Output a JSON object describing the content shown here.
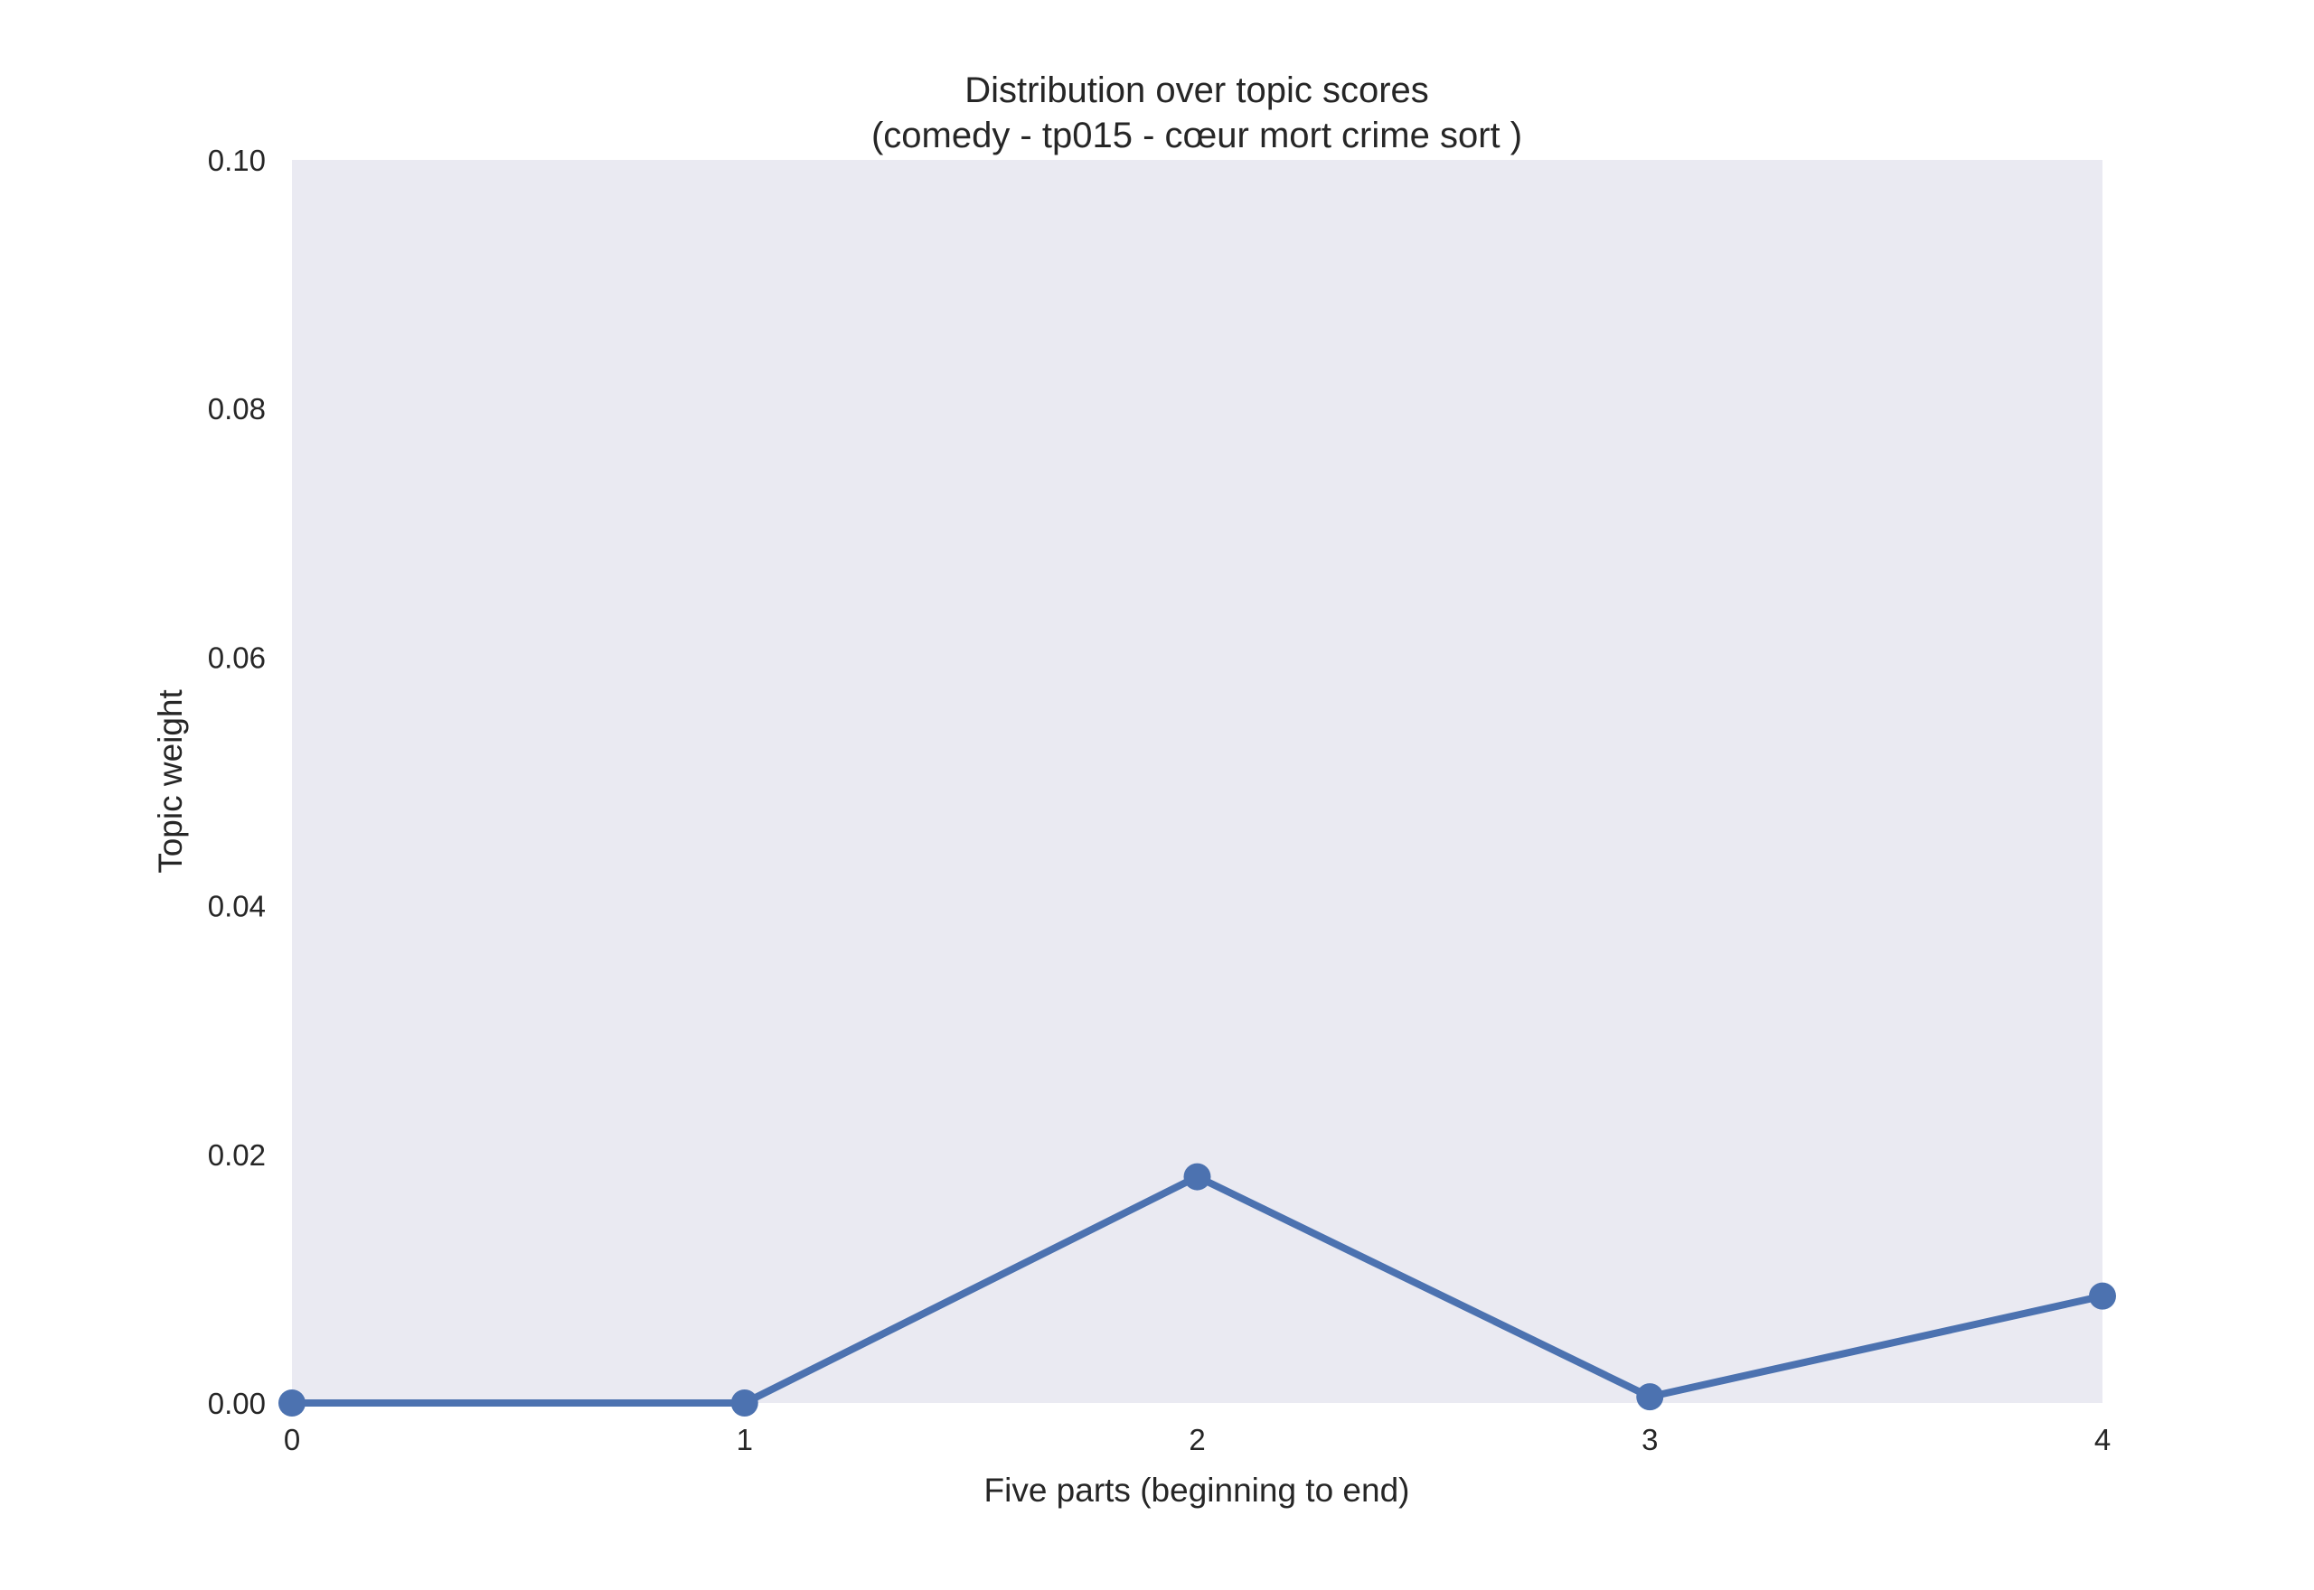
{
  "chart_data": {
    "type": "line",
    "title_line1": "Distribution over topic scores",
    "title_line2": "(comedy - tp015 - cœur mort crime sort )",
    "xlabel": "Five parts (beginning to end)",
    "ylabel": "Topic weight",
    "x": [
      0,
      1,
      2,
      3,
      4
    ],
    "x_tick_labels": [
      "0",
      "1",
      "2",
      "3",
      "4"
    ],
    "y_tick_labels": [
      "0.00",
      "0.02",
      "0.04",
      "0.06",
      "0.08",
      "0.10"
    ],
    "y_ticks": [
      0.0,
      0.02,
      0.04,
      0.06,
      0.08,
      0.1
    ],
    "xlim": [
      0,
      4
    ],
    "ylim": [
      0,
      0.1
    ],
    "grid": false,
    "series": [
      {
        "values": [
          0.0,
          0.0,
          0.0182,
          0.0005,
          0.0086
        ],
        "color": "#4c72b0"
      }
    ],
    "plot_background": "#eaeaf2"
  }
}
